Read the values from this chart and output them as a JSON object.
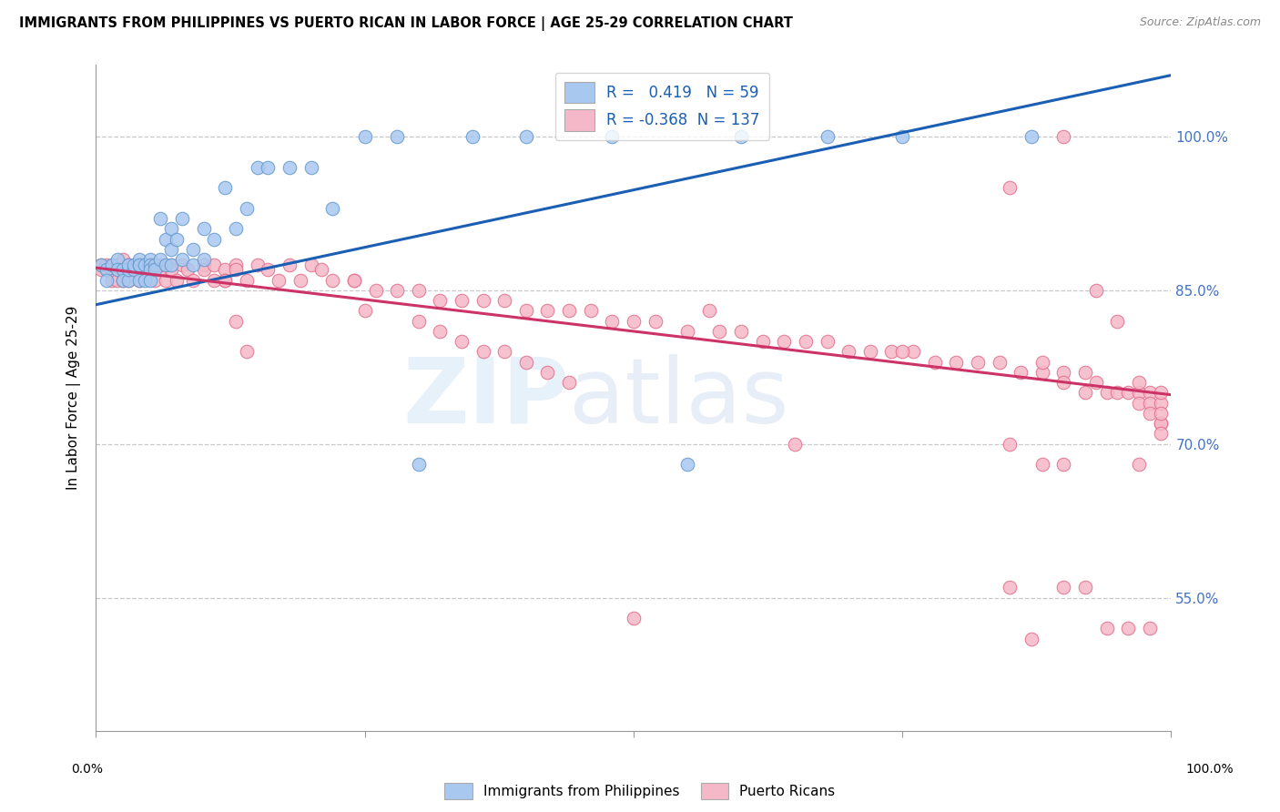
{
  "title": "IMMIGRANTS FROM PHILIPPINES VS PUERTO RICAN IN LABOR FORCE | AGE 25-29 CORRELATION CHART",
  "source": "Source: ZipAtlas.com",
  "ylabel": "In Labor Force | Age 25-29",
  "xlim": [
    0.0,
    1.0
  ],
  "ylim": [
    0.42,
    1.07
  ],
  "yticks": [
    0.55,
    0.7,
    0.85,
    1.0
  ],
  "ytick_labels": [
    "55.0%",
    "70.0%",
    "85.0%",
    "100.0%"
  ],
  "xtick_positions": [
    0.0,
    0.25,
    0.5,
    0.75,
    1.0
  ],
  "blue_R": 0.419,
  "blue_N": 59,
  "pink_R": -0.368,
  "pink_N": 137,
  "blue_color": "#a8c8f0",
  "pink_color": "#f5b8c8",
  "blue_edge_color": "#6699cc",
  "pink_edge_color": "#e0708a",
  "blue_line_color": "#1a5fb4",
  "pink_line_color": "#cc3366",
  "legend_blue_label": "Immigrants from Philippines",
  "legend_pink_label": "Puerto Ricans",
  "watermark_zip": "ZIP",
  "watermark_atlas": "atlas",
  "blue_line_x0": 0.0,
  "blue_line_y0": 0.836,
  "blue_line_x1": 1.0,
  "blue_line_y1": 1.06,
  "pink_line_x0": 0.0,
  "pink_line_y0": 0.872,
  "pink_line_x1": 1.0,
  "pink_line_y1": 0.748,
  "blue_scatter_x": [
    0.005,
    0.01,
    0.01,
    0.015,
    0.02,
    0.02,
    0.025,
    0.025,
    0.03,
    0.03,
    0.03,
    0.035,
    0.035,
    0.04,
    0.04,
    0.04,
    0.04,
    0.045,
    0.045,
    0.05,
    0.05,
    0.05,
    0.05,
    0.055,
    0.055,
    0.06,
    0.06,
    0.065,
    0.065,
    0.07,
    0.07,
    0.07,
    0.075,
    0.08,
    0.08,
    0.09,
    0.09,
    0.1,
    0.1,
    0.11,
    0.12,
    0.13,
    0.14,
    0.15,
    0.16,
    0.18,
    0.2,
    0.22,
    0.25,
    0.28,
    0.3,
    0.35,
    0.4,
    0.48,
    0.55,
    0.6,
    0.68,
    0.75,
    0.87
  ],
  "blue_scatter_y": [
    0.875,
    0.87,
    0.86,
    0.875,
    0.88,
    0.87,
    0.87,
    0.86,
    0.86,
    0.87,
    0.875,
    0.87,
    0.875,
    0.875,
    0.88,
    0.86,
    0.875,
    0.86,
    0.875,
    0.88,
    0.875,
    0.87,
    0.86,
    0.875,
    0.87,
    0.92,
    0.88,
    0.9,
    0.875,
    0.91,
    0.89,
    0.875,
    0.9,
    0.88,
    0.92,
    0.89,
    0.875,
    0.91,
    0.88,
    0.9,
    0.95,
    0.91,
    0.93,
    0.97,
    0.97,
    0.97,
    0.97,
    0.93,
    1.0,
    1.0,
    0.68,
    1.0,
    1.0,
    1.0,
    0.68,
    1.0,
    1.0,
    1.0,
    1.0
  ],
  "pink_scatter_x": [
    0.005,
    0.005,
    0.01,
    0.01,
    0.015,
    0.015,
    0.015,
    0.02,
    0.02,
    0.02,
    0.025,
    0.025,
    0.025,
    0.03,
    0.03,
    0.03,
    0.03,
    0.035,
    0.035,
    0.04,
    0.04,
    0.04,
    0.045,
    0.045,
    0.05,
    0.05,
    0.055,
    0.055,
    0.06,
    0.06,
    0.065,
    0.07,
    0.07,
    0.075,
    0.08,
    0.085,
    0.09,
    0.1,
    0.1,
    0.11,
    0.11,
    0.12,
    0.12,
    0.13,
    0.13,
    0.14,
    0.15,
    0.16,
    0.17,
    0.18,
    0.19,
    0.2,
    0.21,
    0.22,
    0.24,
    0.26,
    0.28,
    0.3,
    0.32,
    0.34,
    0.36,
    0.38,
    0.4,
    0.42,
    0.44,
    0.46,
    0.48,
    0.5,
    0.52,
    0.55,
    0.58,
    0.6,
    0.62,
    0.64,
    0.66,
    0.68,
    0.7,
    0.72,
    0.74,
    0.76,
    0.78,
    0.8,
    0.82,
    0.84,
    0.86,
    0.88,
    0.88,
    0.9,
    0.9,
    0.92,
    0.92,
    0.93,
    0.94,
    0.95,
    0.96,
    0.97,
    0.97,
    0.97,
    0.98,
    0.98,
    0.98,
    0.99,
    0.99,
    0.99,
    0.99,
    0.99,
    0.99,
    0.5,
    0.57,
    0.65,
    0.75,
    0.85,
    0.9,
    0.93,
    0.95,
    0.97,
    0.85,
    0.9,
    0.25,
    0.3,
    0.32,
    0.34,
    0.36,
    0.38,
    0.4,
    0.42,
    0.44,
    0.24,
    0.85,
    0.87,
    0.88,
    0.9,
    0.92,
    0.94,
    0.96,
    0.98,
    0.12,
    0.13,
    0.14
  ],
  "pink_scatter_y": [
    0.87,
    0.875,
    0.875,
    0.87,
    0.87,
    0.875,
    0.86,
    0.87,
    0.875,
    0.86,
    0.88,
    0.87,
    0.86,
    0.875,
    0.87,
    0.86,
    0.875,
    0.875,
    0.87,
    0.87,
    0.875,
    0.86,
    0.875,
    0.87,
    0.875,
    0.87,
    0.875,
    0.86,
    0.87,
    0.875,
    0.86,
    0.875,
    0.87,
    0.86,
    0.875,
    0.87,
    0.86,
    0.875,
    0.87,
    0.86,
    0.875,
    0.87,
    0.86,
    0.875,
    0.87,
    0.86,
    0.875,
    0.87,
    0.86,
    0.875,
    0.86,
    0.875,
    0.87,
    0.86,
    0.86,
    0.85,
    0.85,
    0.85,
    0.84,
    0.84,
    0.84,
    0.84,
    0.83,
    0.83,
    0.83,
    0.83,
    0.82,
    0.82,
    0.82,
    0.81,
    0.81,
    0.81,
    0.8,
    0.8,
    0.8,
    0.8,
    0.79,
    0.79,
    0.79,
    0.79,
    0.78,
    0.78,
    0.78,
    0.78,
    0.77,
    0.77,
    0.78,
    0.77,
    0.76,
    0.77,
    0.75,
    0.76,
    0.75,
    0.75,
    0.75,
    0.75,
    0.74,
    0.76,
    0.75,
    0.74,
    0.73,
    0.74,
    0.75,
    0.72,
    0.72,
    0.73,
    0.71,
    0.53,
    0.83,
    0.7,
    0.79,
    0.7,
    0.68,
    0.85,
    0.82,
    0.68,
    0.95,
    1.0,
    0.83,
    0.82,
    0.81,
    0.8,
    0.79,
    0.79,
    0.78,
    0.77,
    0.76,
    0.86,
    0.56,
    0.51,
    0.68,
    0.56,
    0.56,
    0.52,
    0.52,
    0.52,
    0.86,
    0.82,
    0.79
  ]
}
